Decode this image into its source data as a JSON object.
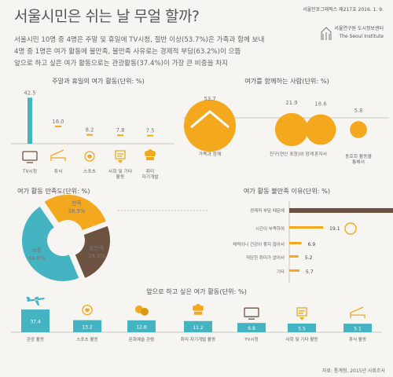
{
  "header": {
    "title": "서울시민은 쉬는 날 무얼 할까?",
    "series_info": "서울인포그래픽스 제217호 2016. 1. 9.",
    "org_kr": "서울연구원 도시정보센터",
    "org_en": "The Seoul Institute"
  },
  "intro_lines": [
    "서울시민 10명 중 4명은 주말 및 휴일에 TV시청, 절반 이상(53.7%)은 가족과 함께 보내",
    "4명 중 1명은 여가 활동에 불만족, 불만족 사유로는 경제적 부담(63.2%)이 으뜸",
    "앞으로 하고 싶은 여가 활동으로는 관광활동(37.4%)이 가장 큰 비중을 차지"
  ],
  "source": "자료: 통계청, 2015년 사회조사",
  "colors": {
    "teal": "#44b3c2",
    "orange": "#f4a81d",
    "brown": "#6d5241",
    "axis": "#c8c6c0",
    "bg": "#f6f5f1"
  },
  "chart_data": [
    {
      "type": "bar",
      "title": "주말과 휴일의 여가 활동(단위: %)",
      "categories": [
        "TV시청",
        "휴식",
        "스포츠",
        "사회 및 기타 활동",
        "취미 자기개발"
      ],
      "values": [
        42.5,
        16.0,
        8.2,
        7.8,
        7.5
      ],
      "icons": [
        "tv-icon",
        "couch-icon",
        "soccer-ball-icon",
        "handshake-icon",
        "chef-hat-icon"
      ]
    },
    {
      "type": "scatter",
      "title": "여가를 함께하는 사람(단위: %)",
      "categories": [
        "가족과 함께",
        "친구(연인 포함)와 함께",
        "혼자서",
        "동호회 활동을 통해서"
      ],
      "values": [
        53.7,
        21.9,
        18.6,
        5.8
      ],
      "icons": [
        "family-icon",
        "friends-icon",
        "person-icon",
        "club-icon"
      ]
    },
    {
      "type": "pie",
      "title": "여가 활동 만족도(단위: %)",
      "labels": [
        "만족",
        "불만족",
        "보통"
      ],
      "values": [
        28.9,
        24.3,
        46.8
      ]
    },
    {
      "type": "bar",
      "title": "여가 활동 불만족 이유(단위: %)",
      "categories": [
        "경제적 부담 때문에",
        "시간이 부족하여",
        "체력이나 건강이 좋지 않아서",
        "적당한 취미가 없어서",
        "기타"
      ],
      "values": [
        63.2,
        19.1,
        6.9,
        5.2,
        5.7
      ]
    },
    {
      "type": "bar",
      "title": "앞으로 하고 싶은 여가 활동(단위: %)",
      "categories": [
        "관광 활동",
        "스포츠 활동",
        "문화예술 관람",
        "취미·자기개발 활동",
        "TV시청",
        "사회 및 기타 활동",
        "휴식 활동"
      ],
      "values": [
        37.4,
        13.2,
        12.8,
        11.2,
        6.8,
        5.5,
        5.1
      ],
      "icons": [
        "airplane-icon",
        "soccer-ball-icon",
        "theater-masks-icon",
        "chef-hat-icon",
        "tv-icon",
        "handshake-icon",
        "couch-icon"
      ]
    }
  ]
}
